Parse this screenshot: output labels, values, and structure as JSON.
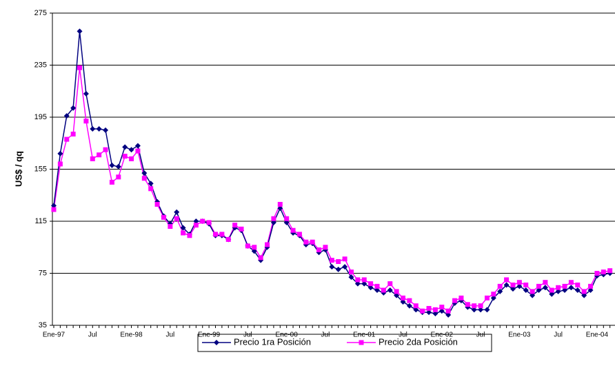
{
  "chart_data": {
    "type": "line",
    "y_label": "US$ / qq",
    "categories": [
      "Ene-97",
      null,
      null,
      null,
      null,
      null,
      "Jul",
      null,
      null,
      null,
      null,
      null,
      "Ene-98",
      null,
      null,
      null,
      null,
      null,
      "Jul",
      null,
      null,
      null,
      null,
      null,
      "Ene-99",
      null,
      null,
      null,
      null,
      null,
      "Jul",
      null,
      null,
      null,
      null,
      null,
      "Ene-00",
      null,
      null,
      null,
      null,
      null,
      "Jul",
      null,
      null,
      null,
      null,
      null,
      "Ene-01",
      null,
      null,
      null,
      null,
      null,
      "Jul",
      null,
      null,
      null,
      null,
      null,
      "Ene-02",
      null,
      null,
      null,
      null,
      null,
      "Jul",
      null,
      null,
      null,
      null,
      null,
      "Ene-03",
      null,
      null,
      null,
      null,
      null,
      "Jul",
      null,
      null,
      null,
      null,
      null,
      "Ene-04",
      null,
      null
    ],
    "series": [
      {
        "name": "Precio 1ra Posición",
        "color": "#000080",
        "marker": "diamond",
        "values": [
          127,
          167,
          196,
          202,
          261,
          213,
          186,
          186,
          185,
          158,
          157,
          172,
          170,
          173,
          152,
          144,
          130,
          119,
          113,
          122,
          110,
          105,
          115,
          115,
          113,
          104,
          104,
          101,
          110,
          108,
          96,
          92,
          85,
          95,
          114,
          125,
          114,
          106,
          104,
          97,
          98,
          91,
          93,
          80,
          78,
          80,
          72,
          67,
          67,
          64,
          62,
          60,
          62,
          58,
          53,
          50,
          47,
          45,
          45,
          44,
          46,
          43,
          52,
          54,
          49,
          47,
          47,
          47,
          56,
          61,
          66,
          63,
          65,
          62,
          58,
          62,
          64,
          59,
          61,
          62,
          64,
          62,
          58,
          62,
          73,
          74,
          75
        ]
      },
      {
        "name": "Precio 2da Posición",
        "color": "#ff00ff",
        "marker": "square",
        "values": [
          124,
          159,
          178,
          182,
          233,
          192,
          163,
          166,
          170,
          145,
          149,
          165,
          163,
          169,
          148,
          140,
          128,
          118,
          111,
          117,
          106,
          104,
          112,
          115,
          114,
          105,
          105,
          101,
          112,
          109,
          96,
          95,
          87,
          97,
          117,
          128,
          117,
          108,
          105,
          99,
          99,
          93,
          95,
          85,
          84,
          86,
          76,
          70,
          70,
          67,
          65,
          62,
          67,
          61,
          56,
          54,
          50,
          46,
          48,
          47,
          49,
          46,
          54,
          56,
          51,
          50,
          50,
          56,
          59,
          65,
          70,
          66,
          68,
          66,
          61,
          65,
          68,
          62,
          64,
          65,
          68,
          66,
          61,
          65,
          75,
          76,
          77
        ]
      }
    ],
    "ylim": [
      35,
      275
    ],
    "yticks": [
      35,
      75,
      115,
      155,
      195,
      235,
      275
    ],
    "grid": true,
    "legend": "bottom"
  }
}
